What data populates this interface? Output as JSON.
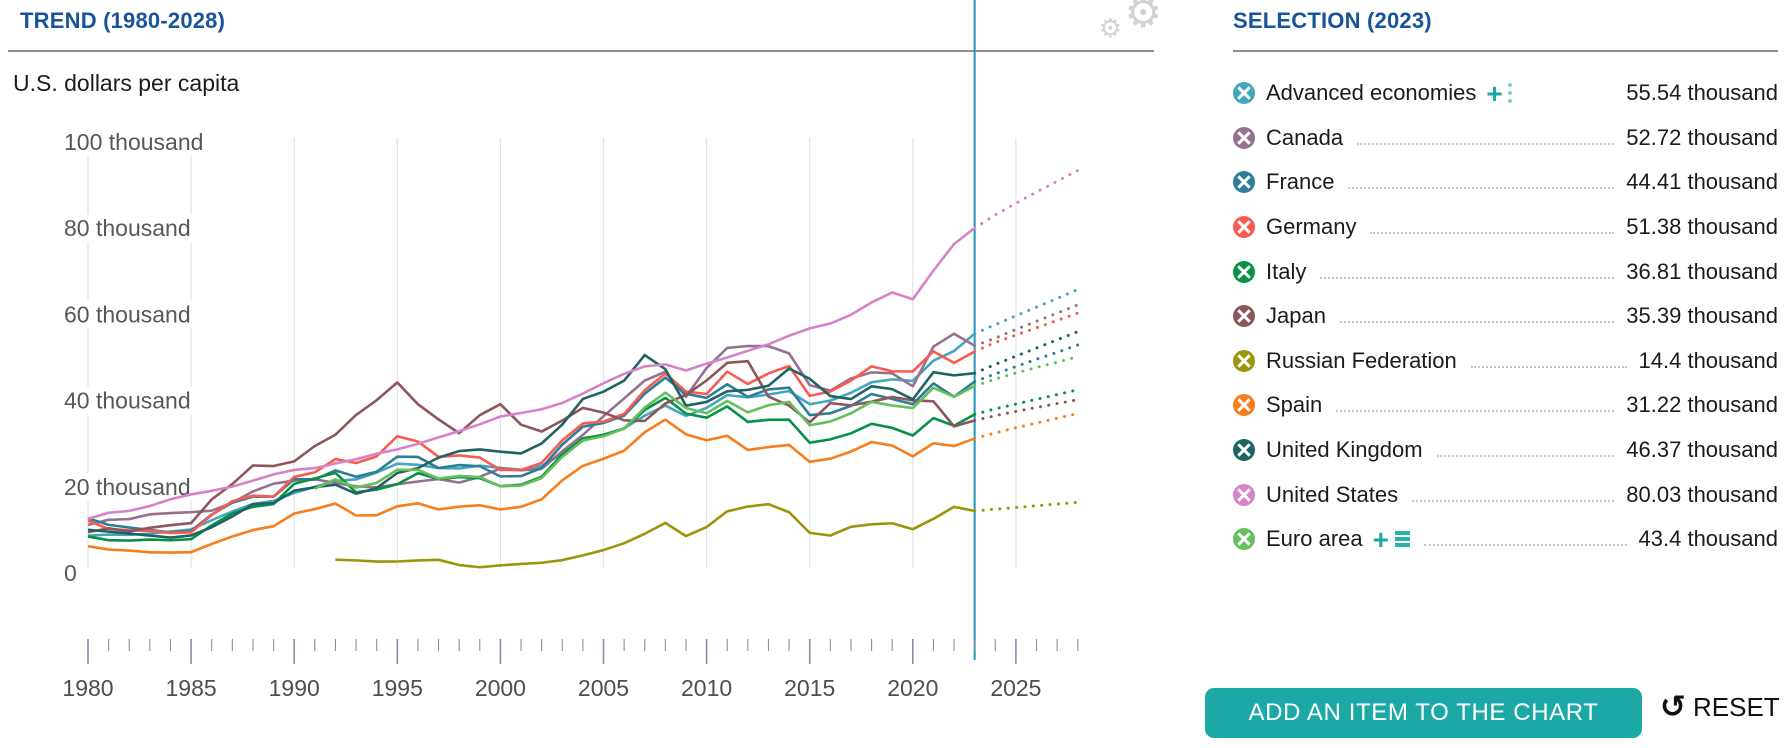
{
  "left_panel": {
    "title": "TREND (1980-2028)",
    "unit_label": "U.S. dollars per capita",
    "settings_icon": "gears-icon",
    "settings_icon_char": "⚙"
  },
  "right_panel": {
    "title": "SELECTION (2023)",
    "accent_color": "#1CA9A5",
    "add_button_label": "ADD AN ITEM TO THE CHART",
    "reset_label": "RESET",
    "reset_icon": "↺",
    "items": [
      {
        "name": "Advanced economies",
        "value_label": "55.54 thousand",
        "color": "#44A7BE",
        "extra_icon": "plus-dots",
        "leader": false
      },
      {
        "name": "Canada",
        "value_label": "52.72 thousand",
        "color": "#96718F"
      },
      {
        "name": "France",
        "value_label": "44.41 thousand",
        "color": "#2E7E99"
      },
      {
        "name": "Germany",
        "value_label": "51.38 thousand",
        "color": "#F95B51"
      },
      {
        "name": "Italy",
        "value_label": "36.81 thousand",
        "color": "#089144"
      },
      {
        "name": "Japan",
        "value_label": "35.39 thousand",
        "color": "#8E555C"
      },
      {
        "name": "Russian Federation",
        "value_label": "14.4 thousand",
        "color": "#9C9409"
      },
      {
        "name": "Spain",
        "value_label": "31.22 thousand",
        "color": "#F87D1B"
      },
      {
        "name": "United Kingdom",
        "value_label": "46.37 thousand",
        "color": "#1E6462"
      },
      {
        "name": "United States",
        "value_label": "80.03 thousand",
        "color": "#D583C9"
      },
      {
        "name": "Euro area",
        "value_label": "43.4 thousand",
        "color": "#65BF5B",
        "extra_icon": "plus-list"
      }
    ]
  },
  "chart_data": {
    "type": "line",
    "title": "TREND (1980-2028)",
    "ylabel": "U.S. dollars per capita",
    "values_unit": "thousand U.S. dollars per capita",
    "x_range": [
      1980,
      2028
    ],
    "selection_year": 2023,
    "projection_style": "dotted after selection year 2023",
    "grid": "vertical gridlines at 5-year intervals only",
    "legend_position": "right panel list",
    "current_year_line_color": "#2097B3",
    "x_ticks": [
      1980,
      1985,
      1990,
      1995,
      2000,
      2005,
      2010,
      2015,
      2020,
      2025
    ],
    "y_ticks": [
      "100 thousand",
      "80 thousand",
      "60 thousand",
      "40 thousand",
      "20 thousand",
      "0"
    ],
    "y_tick_values": [
      100,
      80,
      60,
      40,
      20,
      0
    ],
    "ylim": [
      0,
      100
    ],
    "series": [
      {
        "name": "Advanced economies",
        "color": "#44A7BE",
        "start_year": 1980,
        "values": [
          8.66,
          8.91,
          8.86,
          9.15,
          9.62,
          10.11,
          12.26,
          14.28,
          16.02,
          16.72,
          18.59,
          19.97,
          21.37,
          21.7,
          23.31,
          25.37,
          25.1,
          24.35,
          24.26,
          24.9,
          24.38,
          23.96,
          24.82,
          27.68,
          30.69,
          32.07,
          33.57,
          36.51,
          38.85,
          36.44,
          38.31,
          41.27,
          40.76,
          41.41,
          42.2,
          39.15,
          40.0,
          41.82,
          44.24,
          44.92,
          44.58,
          49.25,
          51.5,
          55.54,
          57.6,
          59.7,
          61.7,
          63.7,
          65.8
        ]
      },
      {
        "name": "Canada",
        "color": "#96718F",
        "start_year": 1980,
        "values": [
          11.17,
          12.34,
          12.51,
          13.62,
          13.9,
          14.11,
          14.46,
          16.31,
          18.94,
          20.72,
          21.45,
          21.77,
          20.88,
          20.12,
          19.86,
          20.61,
          21.23,
          21.79,
          20.97,
          22.31,
          24.27,
          23.82,
          24.18,
          28.23,
          32.04,
          36.38,
          40.5,
          44.66,
          46.71,
          40.88,
          47.56,
          52.22,
          52.67,
          52.64,
          50.96,
          43.59,
          42.32,
          45.13,
          46.55,
          46.33,
          43.31,
          52.52,
          55.52,
          52.72,
          54.5,
          56.5,
          58.4,
          60.3,
          62.2
        ]
      },
      {
        "name": "France",
        "color": "#2E7E99",
        "start_year": 1980,
        "values": [
          12.71,
          11.17,
          10.55,
          10.01,
          9.42,
          9.77,
          13.56,
          16.33,
          17.69,
          17.69,
          21.79,
          21.68,
          23.81,
          22.32,
          23.5,
          26.98,
          26.93,
          24.35,
          25.04,
          24.77,
          22.42,
          22.48,
          24.36,
          29.79,
          33.93,
          34.82,
          36.52,
          41.6,
          45.33,
          41.58,
          40.64,
          43.79,
          40.87,
          42.59,
          43.0,
          36.64,
          37.06,
          38.78,
          41.53,
          40.38,
          39.18,
          43.99,
          40.89,
          44.41,
          46.2,
          47.9,
          49.6,
          51.2,
          52.9
        ]
      },
      {
        "name": "Germany",
        "color": "#F95B51",
        "start_year": 1980,
        "values": [
          12.14,
          10.21,
          9.91,
          9.79,
          9.27,
          9.43,
          13.46,
          16.68,
          17.93,
          17.74,
          22.3,
          23.36,
          26.44,
          25.52,
          27.07,
          31.73,
          30.5,
          26.95,
          27.28,
          26.79,
          23.9,
          23.89,
          25.54,
          30.77,
          34.7,
          35.12,
          36.9,
          42.4,
          46.3,
          42.1,
          41.53,
          46.71,
          43.86,
          46.3,
          48.02,
          41.1,
          42.12,
          44.64,
          47.94,
          46.8,
          46.77,
          51.43,
          48.76,
          51.38,
          53.5,
          55.2,
          56.9,
          58.6,
          60.3
        ]
      },
      {
        "name": "Italy",
        "color": "#089144",
        "start_year": 1980,
        "values": [
          8.46,
          7.62,
          7.52,
          7.76,
          7.6,
          7.84,
          11.06,
          13.84,
          15.36,
          15.99,
          20.69,
          21.96,
          23.24,
          18.72,
          19.34,
          20.59,
          23.16,
          21.8,
          22.25,
          21.99,
          20.14,
          20.49,
          22.32,
          27.47,
          31.26,
          32.04,
          33.5,
          37.81,
          40.64,
          36.98,
          36.03,
          38.65,
          35.05,
          35.55,
          35.56,
          30.23,
          31.0,
          32.41,
          34.62,
          33.67,
          31.91,
          35.93,
          34.16,
          36.81,
          38.1,
          39.2,
          40.3,
          41.4,
          42.5
        ]
      },
      {
        "name": "Japan",
        "color": "#8E555C",
        "start_year": 1980,
        "values": [
          9.47,
          10.36,
          9.67,
          10.48,
          11.09,
          11.58,
          17.08,
          20.63,
          24.95,
          24.82,
          25.9,
          29.47,
          32.08,
          36.66,
          40.1,
          44.21,
          39.16,
          35.64,
          32.44,
          36.62,
          39.17,
          34.41,
          32.82,
          35.39,
          38.31,
          37.22,
          35.43,
          35.28,
          39.34,
          41.31,
          44.67,
          48.76,
          49.15,
          40.93,
          38.84,
          34.96,
          39.41,
          38.89,
          39.75,
          40.83,
          40.06,
          39.83,
          34.02,
          35.39,
          36.5,
          37.5,
          38.4,
          39.3,
          40.2
        ]
      },
      {
        "name": "Russian Federation",
        "color": "#9C9409",
        "start_year": 1992,
        "values": [
          3.1,
          2.93,
          2.66,
          2.67,
          2.91,
          3.06,
          1.85,
          1.33,
          1.77,
          2.1,
          2.38,
          2.98,
          4.1,
          5.32,
          6.92,
          9.1,
          11.63,
          8.56,
          10.67,
          14.31,
          15.42,
          15.97,
          14.1,
          9.31,
          8.7,
          10.72,
          11.29,
          11.54,
          10.16,
          12.57,
          15.35,
          14.4,
          14.8,
          15.2,
          15.6,
          16.0,
          16.4
        ]
      },
      {
        "name": "Spain",
        "color": "#F87D1B",
        "start_year": 1980,
        "values": [
          6.21,
          5.45,
          5.2,
          4.81,
          4.75,
          4.84,
          6.73,
          8.48,
          9.96,
          10.86,
          13.81,
          14.83,
          16.11,
          13.34,
          13.41,
          15.47,
          16.17,
          14.73,
          15.39,
          15.72,
          14.75,
          15.36,
          17.1,
          21.5,
          24.86,
          26.51,
          28.39,
          32.65,
          35.58,
          32.17,
          30.8,
          31.84,
          28.56,
          29.21,
          29.72,
          25.79,
          26.52,
          28.17,
          30.39,
          29.58,
          27.06,
          30.1,
          29.46,
          31.22,
          32.5,
          33.7,
          34.8,
          35.9,
          37.0
        ]
      },
      {
        "name": "United Kingdom",
        "color": "#1E6462",
        "start_year": 1980,
        "values": [
          10.03,
          9.6,
          9.15,
          8.69,
          8.22,
          8.72,
          10.61,
          13.12,
          15.99,
          16.24,
          19.1,
          19.9,
          20.49,
          18.39,
          19.71,
          23.2,
          24.33,
          26.77,
          28.29,
          28.67,
          28.15,
          27.75,
          30.06,
          34.45,
          40.39,
          42.07,
          44.63,
          50.57,
          47.29,
          38.82,
          39.69,
          42.15,
          42.49,
          43.45,
          47.45,
          45.07,
          41.06,
          40.36,
          43.31,
          42.66,
          40.29,
          46.59,
          45.85,
          46.37,
          48.4,
          50.3,
          52.2,
          54.1,
          56.0
        ]
      },
      {
        "name": "United States",
        "color": "#D583C9",
        "start_year": 1980,
        "values": [
          12.55,
          13.97,
          14.41,
          15.53,
          17.12,
          18.23,
          19.07,
          20.04,
          21.42,
          22.88,
          23.91,
          24.34,
          25.42,
          26.39,
          27.69,
          28.69,
          29.97,
          31.46,
          32.93,
          34.5,
          36.31,
          37.13,
          37.99,
          39.45,
          41.64,
          44.03,
          46.22,
          47.94,
          48.4,
          46.99,
          48.59,
          50.01,
          51.55,
          53.07,
          55.05,
          56.76,
          57.88,
          59.91,
          62.77,
          65.09,
          63.53,
          70.16,
          76.33,
          80.03,
          83.1,
          85.8,
          88.4,
          90.9,
          93.4
        ]
      },
      {
        "name": "Euro area",
        "color": "#65BF5B",
        "start_year": 1991,
        "values": [
          19.57,
          21.71,
          19.83,
          20.91,
          23.95,
          23.94,
          21.92,
          22.51,
          22.27,
          20.11,
          20.27,
          22.01,
          26.95,
          30.77,
          31.72,
          33.52,
          38.38,
          41.83,
          38.29,
          37.06,
          39.93,
          37.26,
          38.92,
          39.7,
          34.28,
          35.14,
          37.05,
          39.72,
          38.86,
          38.27,
          42.97,
          40.87,
          43.4,
          45.0,
          46.4,
          47.7,
          48.9,
          50.2
        ]
      }
    ]
  }
}
